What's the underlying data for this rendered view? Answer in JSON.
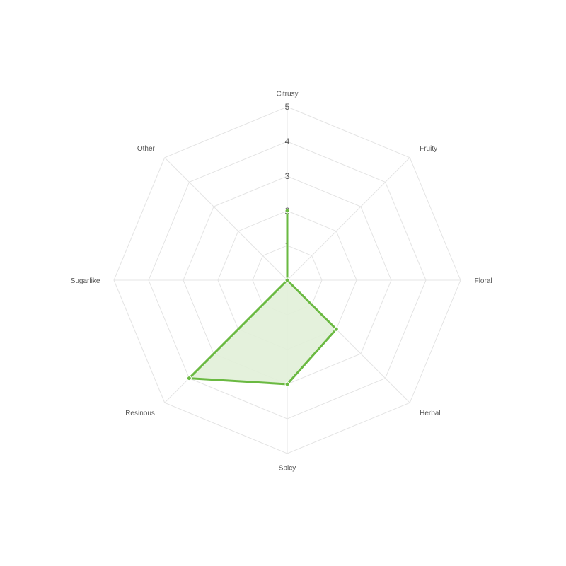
{
  "chart_data": {
    "type": "radar",
    "categories": [
      "Citrusy",
      "Fruity",
      "Floral",
      "Herbal",
      "Spicy",
      "Resinous",
      "Sugarlike",
      "Other"
    ],
    "values": [
      2,
      0,
      0,
      2,
      3,
      4,
      0,
      0
    ],
    "rlim": [
      0,
      5
    ],
    "ticks": [
      "1",
      "2",
      "3",
      "4",
      "5"
    ],
    "grid": true,
    "legend": "none",
    "colors": {
      "line": "#6ab941",
      "fill": "#e1f0d8",
      "grid": "#e4e4e4"
    }
  }
}
